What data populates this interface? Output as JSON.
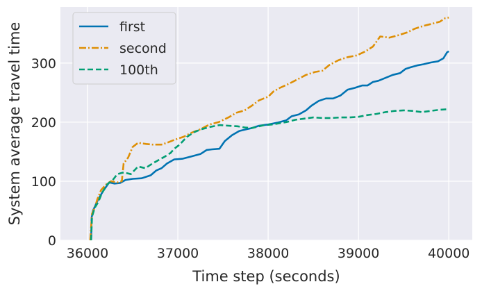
{
  "chart_data": {
    "type": "line",
    "xlabel": "Time step (seconds)",
    "ylabel": "System average travel time",
    "xlim": [
      35700,
      40260
    ],
    "ylim": [
      0,
      395
    ],
    "x_ticks": [
      36000,
      37000,
      38000,
      39000,
      40000
    ],
    "x_tick_labels": [
      "36000",
      "37000",
      "38000",
      "39000",
      "40000"
    ],
    "y_ticks": [
      0,
      100,
      200,
      300
    ],
    "y_tick_labels": [
      "0",
      "100",
      "200",
      "300"
    ],
    "grid": true,
    "legend_position": "top-left",
    "background": "#eaeaf2",
    "series": [
      {
        "name": "first",
        "color": "#0173b2",
        "dash": "solid",
        "points": [
          [
            36040,
            0
          ],
          [
            36045,
            38
          ],
          [
            36060,
            50
          ],
          [
            36090,
            60
          ],
          [
            36120,
            70
          ],
          [
            36180,
            85
          ],
          [
            36240,
            98
          ],
          [
            36300,
            96
          ],
          [
            36360,
            97
          ],
          [
            36420,
            102
          ],
          [
            36500,
            104
          ],
          [
            36600,
            105
          ],
          [
            36700,
            110
          ],
          [
            36760,
            118
          ],
          [
            36820,
            122
          ],
          [
            36880,
            130
          ],
          [
            36960,
            137
          ],
          [
            37050,
            138
          ],
          [
            37150,
            142
          ],
          [
            37250,
            146
          ],
          [
            37320,
            153
          ],
          [
            37380,
            154
          ],
          [
            37460,
            155
          ],
          [
            37520,
            168
          ],
          [
            37600,
            178
          ],
          [
            37680,
            185
          ],
          [
            37760,
            188
          ],
          [
            37820,
            190
          ],
          [
            37900,
            194
          ],
          [
            38000,
            196
          ],
          [
            38100,
            199
          ],
          [
            38200,
            203
          ],
          [
            38260,
            210
          ],
          [
            38340,
            213
          ],
          [
            38420,
            220
          ],
          [
            38480,
            228
          ],
          [
            38560,
            236
          ],
          [
            38640,
            240
          ],
          [
            38720,
            240
          ],
          [
            38800,
            245
          ],
          [
            38880,
            255
          ],
          [
            38960,
            258
          ],
          [
            39040,
            262
          ],
          [
            39100,
            262
          ],
          [
            39160,
            268
          ],
          [
            39220,
            270
          ],
          [
            39300,
            275
          ],
          [
            39380,
            280
          ],
          [
            39460,
            283
          ],
          [
            39520,
            290
          ],
          [
            39580,
            293
          ],
          [
            39650,
            296
          ],
          [
            39720,
            298
          ],
          [
            39800,
            301
          ],
          [
            39880,
            303
          ],
          [
            39940,
            308
          ],
          [
            39980,
            318
          ],
          [
            40000,
            320
          ]
        ]
      },
      {
        "name": "second",
        "color": "#de8f05",
        "dash": "dashdot",
        "points": [
          [
            36030,
            0
          ],
          [
            36050,
            45
          ],
          [
            36080,
            55
          ],
          [
            36110,
            70
          ],
          [
            36150,
            85
          ],
          [
            36180,
            90
          ],
          [
            36210,
            95
          ],
          [
            36260,
            100
          ],
          [
            36330,
            98
          ],
          [
            36380,
            100
          ],
          [
            36400,
            130
          ],
          [
            36450,
            140
          ],
          [
            36500,
            158
          ],
          [
            36560,
            165
          ],
          [
            36650,
            163
          ],
          [
            36720,
            162
          ],
          [
            36820,
            162
          ],
          [
            36880,
            165
          ],
          [
            36960,
            170
          ],
          [
            37060,
            175
          ],
          [
            37150,
            182
          ],
          [
            37250,
            188
          ],
          [
            37350,
            196
          ],
          [
            37450,
            200
          ],
          [
            37560,
            208
          ],
          [
            37650,
            216
          ],
          [
            37740,
            220
          ],
          [
            37820,
            228
          ],
          [
            37900,
            237
          ],
          [
            38000,
            243
          ],
          [
            38060,
            252
          ],
          [
            38130,
            258
          ],
          [
            38230,
            265
          ],
          [
            38320,
            272
          ],
          [
            38420,
            280
          ],
          [
            38520,
            285
          ],
          [
            38600,
            287
          ],
          [
            38680,
            297
          ],
          [
            38780,
            305
          ],
          [
            38880,
            310
          ],
          [
            38980,
            313
          ],
          [
            39080,
            320
          ],
          [
            39160,
            328
          ],
          [
            39240,
            345
          ],
          [
            39340,
            343
          ],
          [
            39440,
            347
          ],
          [
            39540,
            352
          ],
          [
            39620,
            358
          ],
          [
            39720,
            363
          ],
          [
            39800,
            366
          ],
          [
            39900,
            370
          ],
          [
            39960,
            376
          ],
          [
            40000,
            377
          ]
        ]
      },
      {
        "name": "100th",
        "color": "#029e73",
        "dash": "dashed",
        "points": [
          [
            36040,
            0
          ],
          [
            36050,
            40
          ],
          [
            36080,
            55
          ],
          [
            36120,
            65
          ],
          [
            36160,
            80
          ],
          [
            36220,
            95
          ],
          [
            36280,
            102
          ],
          [
            36330,
            112
          ],
          [
            36400,
            115
          ],
          [
            36480,
            112
          ],
          [
            36560,
            125
          ],
          [
            36640,
            122
          ],
          [
            36720,
            130
          ],
          [
            36800,
            137
          ],
          [
            36860,
            142
          ],
          [
            36920,
            148
          ],
          [
            36960,
            155
          ],
          [
            37020,
            162
          ],
          [
            37100,
            175
          ],
          [
            37180,
            183
          ],
          [
            37260,
            188
          ],
          [
            37360,
            192
          ],
          [
            37460,
            195
          ],
          [
            37560,
            194
          ],
          [
            37660,
            193
          ],
          [
            37740,
            191
          ],
          [
            37820,
            190
          ],
          [
            37900,
            193
          ],
          [
            37960,
            195
          ],
          [
            38040,
            196
          ],
          [
            38120,
            198
          ],
          [
            38200,
            200
          ],
          [
            38300,
            204
          ],
          [
            38400,
            206
          ],
          [
            38500,
            208
          ],
          [
            38600,
            207
          ],
          [
            38700,
            207
          ],
          [
            38800,
            208
          ],
          [
            38900,
            208
          ],
          [
            39000,
            209
          ],
          [
            39100,
            212
          ],
          [
            39200,
            214
          ],
          [
            39300,
            217
          ],
          [
            39400,
            219
          ],
          [
            39500,
            220
          ],
          [
            39600,
            219
          ],
          [
            39700,
            217
          ],
          [
            39800,
            219
          ],
          [
            39900,
            221
          ],
          [
            40000,
            222
          ]
        ]
      }
    ]
  }
}
